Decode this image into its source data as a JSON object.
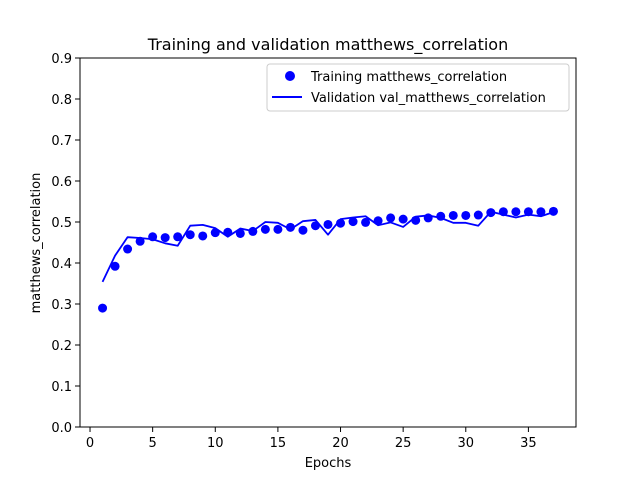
{
  "chart_data": {
    "type": "line",
    "title": "Training and validation matthews_correlation",
    "xlabel": "Epochs",
    "ylabel": "matthews_correlation",
    "xlim": [
      -0.8,
      38.8
    ],
    "ylim": [
      0.0,
      0.9
    ],
    "xticks": [
      0,
      5,
      10,
      15,
      20,
      25,
      30,
      35
    ],
    "yticks": [
      0.0,
      0.1,
      0.2,
      0.3,
      0.4,
      0.5,
      0.6,
      0.7,
      0.8,
      0.9
    ],
    "grid": false,
    "legend_position": "top-right",
    "series": [
      {
        "name": "Training matthews_correlation",
        "style": "points",
        "color": "#0000ff",
        "x": [
          1,
          2,
          3,
          4,
          5,
          6,
          7,
          8,
          9,
          10,
          11,
          12,
          13,
          14,
          15,
          16,
          17,
          18,
          19,
          20,
          21,
          22,
          23,
          24,
          25,
          26,
          27,
          28,
          29,
          30,
          31,
          32,
          33,
          34,
          35,
          36,
          37
        ],
        "values": [
          0.29,
          0.392,
          0.434,
          0.453,
          0.464,
          0.462,
          0.464,
          0.469,
          0.466,
          0.474,
          0.475,
          0.472,
          0.477,
          0.482,
          0.482,
          0.487,
          0.48,
          0.491,
          0.494,
          0.497,
          0.501,
          0.499,
          0.503,
          0.51,
          0.507,
          0.504,
          0.51,
          0.514,
          0.516,
          0.516,
          0.517,
          0.523,
          0.525,
          0.525,
          0.525,
          0.525,
          0.526
        ]
      },
      {
        "name": "Validation val_matthews_correlation",
        "style": "line",
        "color": "#0000ff",
        "x": [
          1,
          2,
          3,
          4,
          5,
          6,
          7,
          8,
          9,
          10,
          11,
          12,
          13,
          14,
          15,
          16,
          17,
          18,
          19,
          20,
          21,
          22,
          23,
          24,
          25,
          26,
          27,
          28,
          29,
          30,
          31,
          32,
          33,
          34,
          35,
          36,
          37
        ],
        "values": [
          0.354,
          0.418,
          0.463,
          0.461,
          0.458,
          0.448,
          0.442,
          0.491,
          0.493,
          0.485,
          0.464,
          0.484,
          0.478,
          0.5,
          0.498,
          0.482,
          0.502,
          0.505,
          0.469,
          0.507,
          0.511,
          0.514,
          0.492,
          0.499,
          0.488,
          0.513,
          0.516,
          0.51,
          0.498,
          0.498,
          0.491,
          0.525,
          0.518,
          0.511,
          0.518,
          0.514,
          0.524
        ]
      }
    ]
  }
}
